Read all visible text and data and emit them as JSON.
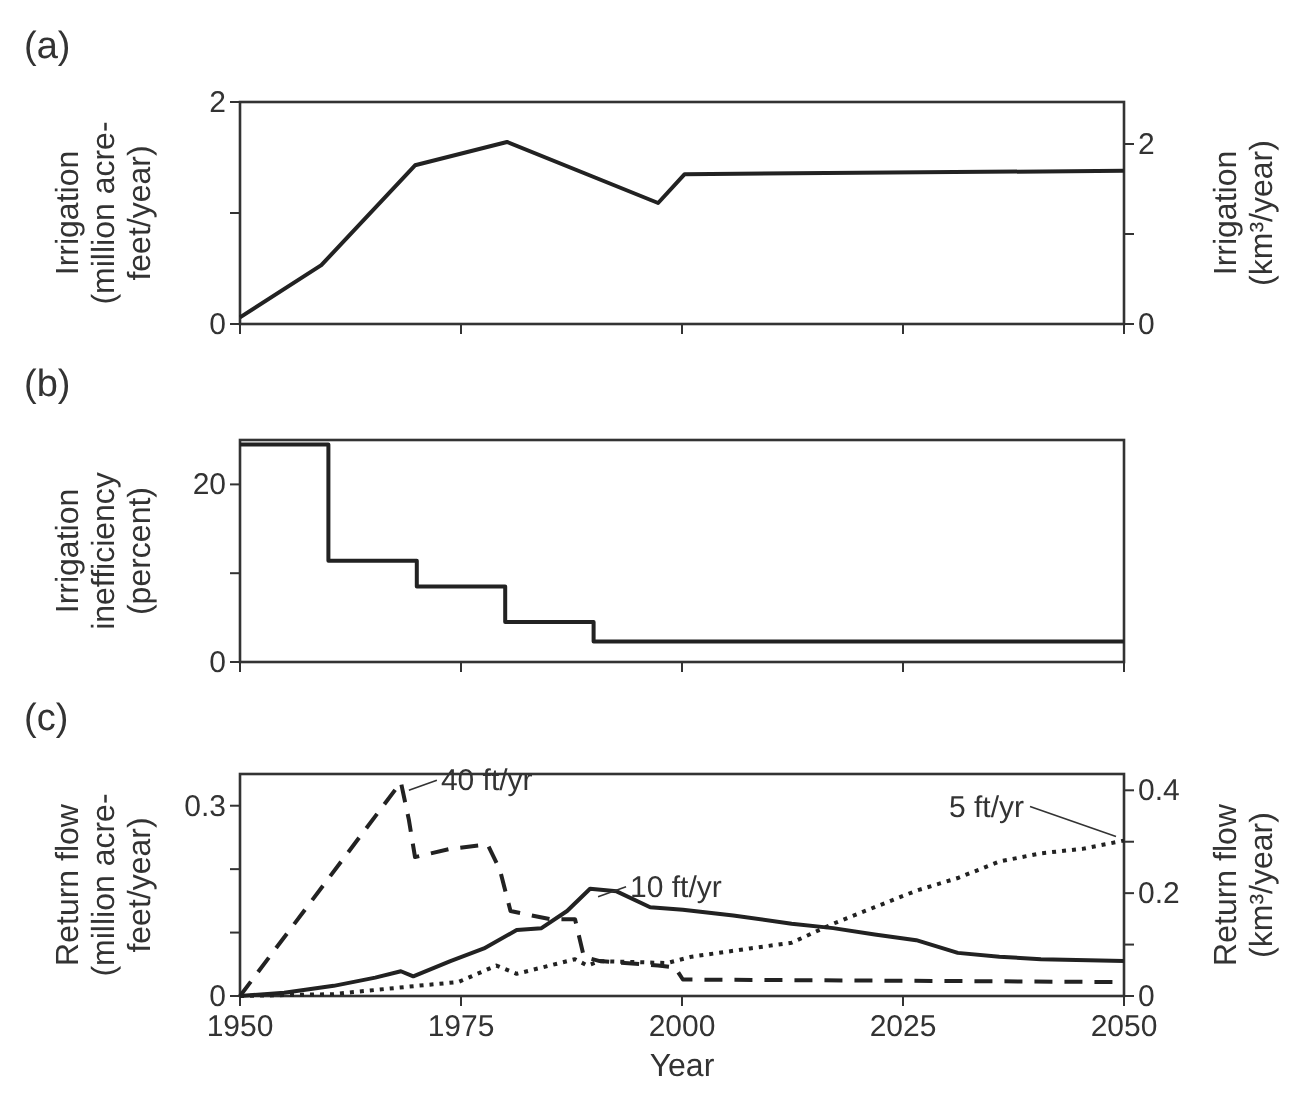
{
  "chart_data": [
    {
      "type": "line",
      "title": "(a)",
      "ylabel": "Irrigation\n(million acre-\nfeet/year)",
      "y2label": "Irrigation\n(km³/year)",
      "xlim": [
        1950,
        2050
      ],
      "xticks": [
        1950,
        1975,
        2000,
        2025,
        2050
      ],
      "ylim": [
        0,
        2
      ],
      "yticks": [
        0,
        {
          "value": 1,
          "label": null
        },
        2
      ],
      "y2lim": [
        0,
        2.467
      ],
      "y2ticks": [
        0,
        {
          "value": 1,
          "label": null
        },
        2
      ],
      "tick_labels": "y",
      "line_style": "solid",
      "series": [
        {
          "color": "#222222",
          "x": [
            1950,
            1959.2,
            1969.8,
            1980.2,
            1997.3,
            2000.3,
            2050
          ],
          "values": [
            0.06,
            0.53,
            1.43,
            1.64,
            1.09,
            1.35,
            1.38
          ]
        }
      ]
    },
    {
      "type": "step",
      "title": "(b)",
      "ylabel": "Irrigation\ninefficiency\n(percent)",
      "xlim": [
        1950,
        2050
      ],
      "xticks": [
        1950,
        1975,
        2000,
        2025,
        2050
      ],
      "ylim": [
        0,
        25
      ],
      "yticks": [
        0,
        {
          "value": 10,
          "label": null
        },
        20
      ],
      "tick_labels": "y",
      "line_style": "solid",
      "series": [
        {
          "color": "#222222",
          "x": [
            1950,
            1960,
            1970,
            1980,
            1990,
            2050
          ],
          "values": [
            24.5,
            11.4,
            8.5,
            4.5,
            2.3,
            2.3
          ]
        }
      ]
    },
    {
      "type": "line",
      "title": "(c)",
      "xlabel": "Year",
      "ylabel": "Return flow\n(million acre-\nfeet/year)",
      "y2label": "Return flow\n(km³/year)",
      "xlim": [
        1950,
        2050
      ],
      "xticks": [
        1950,
        1975,
        2000,
        2025,
        2050
      ],
      "ylim": [
        0,
        0.35
      ],
      "yticks": [
        0,
        {
          "value": 0.1,
          "label": null
        },
        {
          "value": 0.2,
          "label": null
        },
        0.3
      ],
      "y2lim": [
        0,
        0.4317
      ],
      "y2ticks": [
        0,
        {
          "value": 0.1,
          "label": null
        },
        0.2,
        {
          "value": 0.3,
          "label": null
        },
        0.4
      ],
      "series": [
        {
          "name": "40 ft/yr",
          "color": "#222222",
          "line_style": "dashed",
          "x": [
            1950,
            1968.2,
            1969.1,
            1969.8,
            1973.8,
            1978,
            1979.4,
            1980.6,
            1985.1,
            1987.9,
            1988.9,
            1990.7,
            1997.3,
            1999.2,
            2000.1,
            2050
          ],
          "values": [
            0,
            0.337,
            0.278,
            0.219,
            0.232,
            0.239,
            0.199,
            0.134,
            0.121,
            0.121,
            0.062,
            0.055,
            0.048,
            0.045,
            0.026,
            0.022
          ]
        },
        {
          "name": "10 ft/yr",
          "color": "#222222",
          "line_style": "solid",
          "x": [
            1950,
            1955,
            1960.6,
            1965.3,
            1968.2,
            1969.6,
            1973.8,
            1977.6,
            1981.3,
            1984.1,
            1987,
            1989.6,
            1992.6,
            1996.4,
            2000.1,
            2005.8,
            2012.4,
            2017.1,
            2021.8,
            2026.5,
            2031.2,
            2035.9,
            2040.6,
            2050
          ],
          "values": [
            0,
            0.005,
            0.016,
            0.029,
            0.039,
            0.031,
            0.055,
            0.075,
            0.104,
            0.107,
            0.134,
            0.169,
            0.165,
            0.14,
            0.136,
            0.127,
            0.114,
            0.107,
            0.097,
            0.088,
            0.068,
            0.062,
            0.058,
            0.055
          ]
        },
        {
          "name": "5 ft/yr",
          "color": "#222222",
          "line_style": "dotted",
          "x": [
            1950,
            1960.6,
            1970,
            1974.7,
            1979,
            1981.3,
            1987.9,
            1989.3,
            1990.7,
            1998.3,
            2001.1,
            2007.7,
            2012.4,
            2017.1,
            2021.8,
            2026.5,
            2031.2,
            2035.9,
            2040.6,
            2045.3,
            2050
          ],
          "values": [
            0,
            0.003,
            0.016,
            0.022,
            0.048,
            0.035,
            0.058,
            0.048,
            0.055,
            0.052,
            0.062,
            0.075,
            0.084,
            0.114,
            0.14,
            0.166,
            0.186,
            0.212,
            0.225,
            0.232,
            0.245
          ]
        }
      ]
    }
  ]
}
